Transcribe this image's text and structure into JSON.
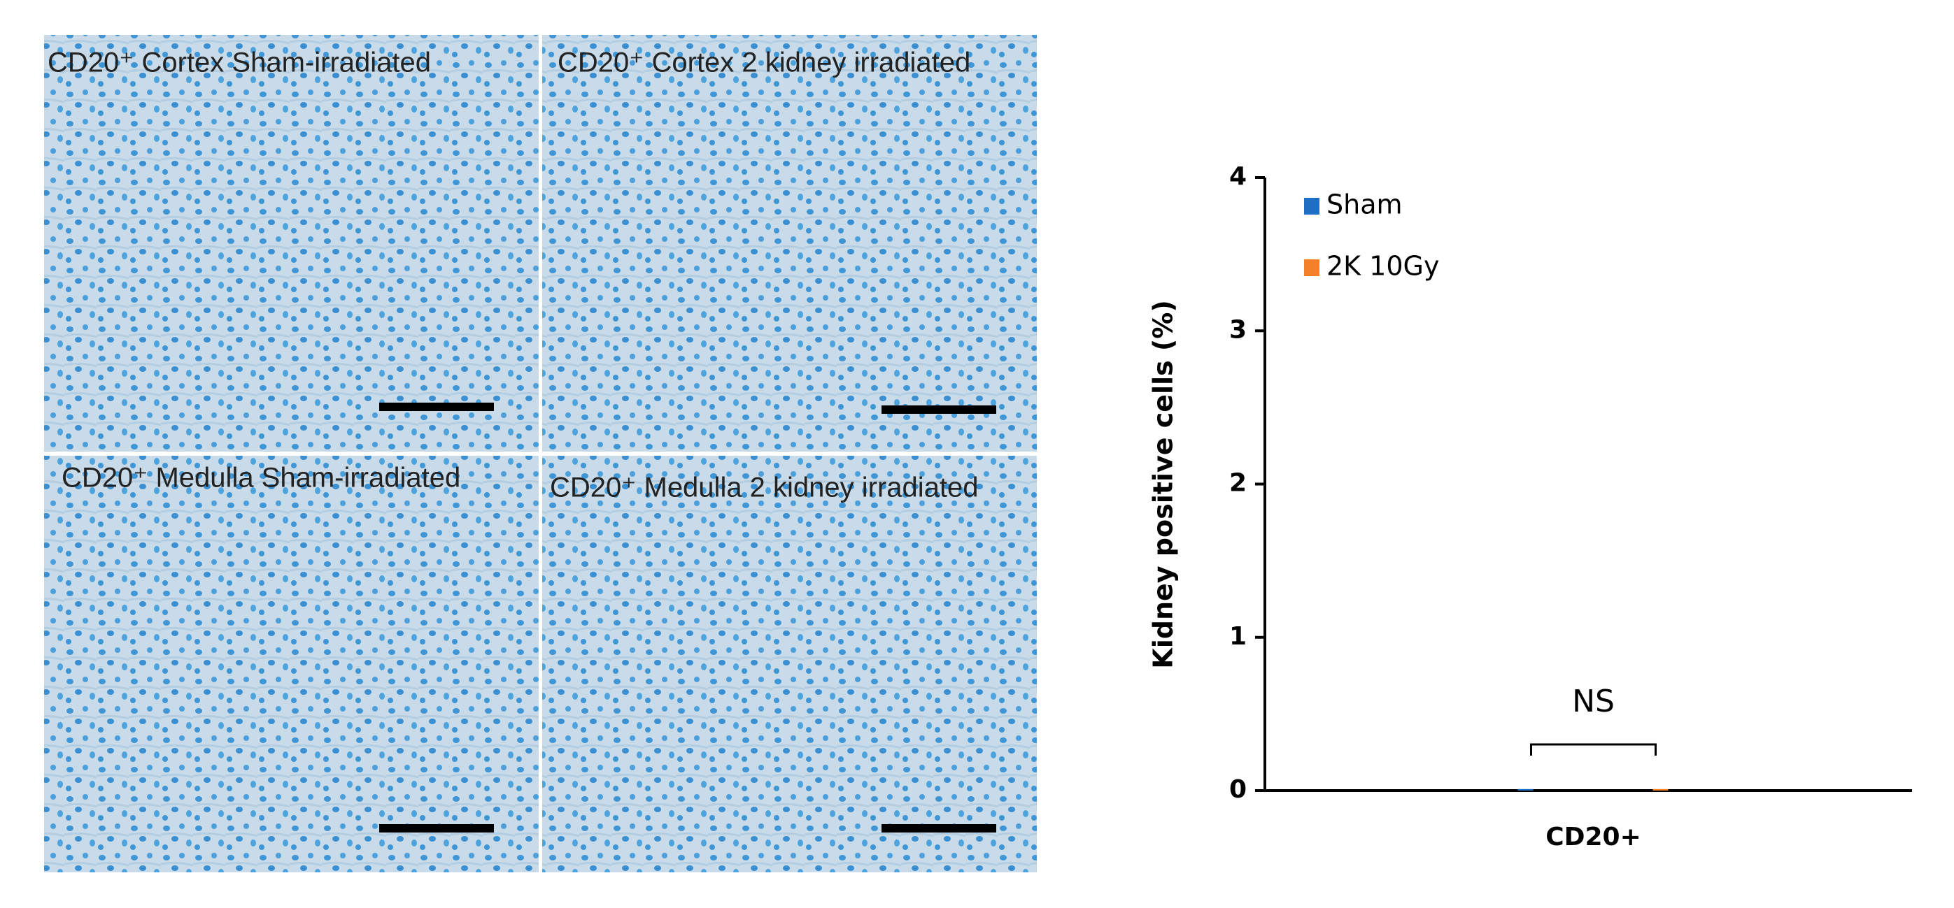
{
  "panels": [
    {
      "label": "CD20⁺ Cortex Sham-irradiated"
    },
    {
      "label": "CD20⁺ Cortex 2 kidney irradiated"
    },
    {
      "label": "CD20⁺ Medulla Sham-irradiated"
    },
    {
      "label": "CD20⁺ Medulla 2 kidney irradiated"
    }
  ],
  "chart_data": {
    "type": "bar",
    "ylabel": "Kidney positive cells (%)",
    "categories": [
      "CD20+"
    ],
    "series": [
      {
        "name": "Sham",
        "color": "#1f6fc5",
        "values": [
          0.01
        ]
      },
      {
        "name": "2K 10Gy",
        "color": "#f4802a",
        "values": [
          0.01
        ]
      }
    ],
    "ylim": [
      0,
      4
    ],
    "yticks": [
      0,
      1,
      2,
      3,
      4
    ],
    "legend": "top-left",
    "annotation": "NS"
  }
}
